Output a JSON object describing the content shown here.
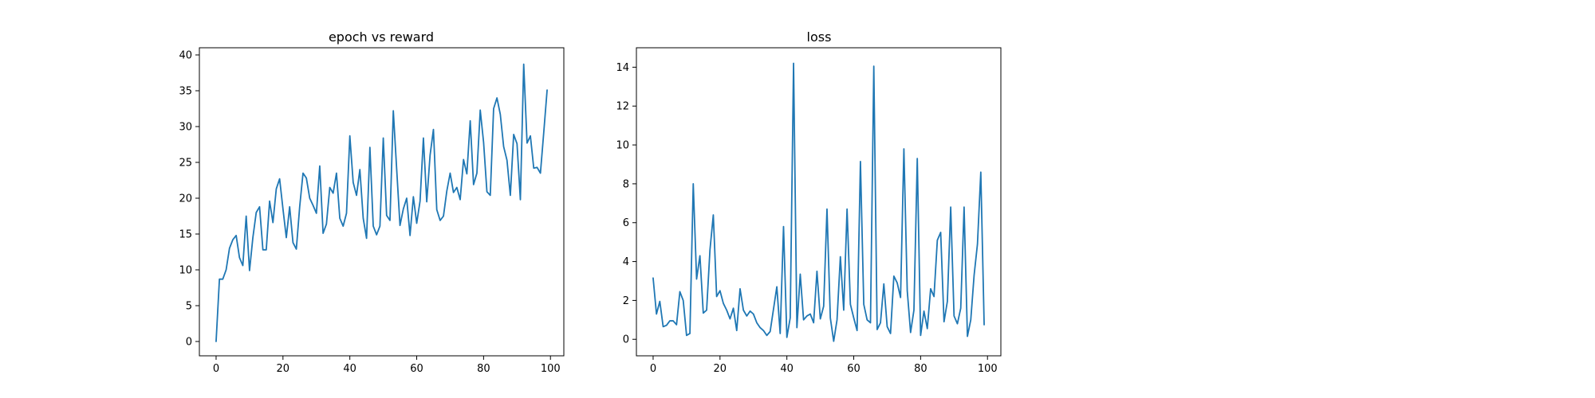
{
  "figure": {
    "background": "#ffffff",
    "line_color": "#1f77b4"
  },
  "chart_data": [
    {
      "type": "line",
      "title": "epoch vs reward",
      "xlabel": "",
      "ylabel": "",
      "xlim": [
        -5,
        104
      ],
      "ylim": [
        -2,
        41
      ],
      "xticks": [
        0,
        20,
        40,
        60,
        80,
        100
      ],
      "yticks": [
        0,
        5,
        10,
        15,
        20,
        25,
        30,
        35,
        40
      ],
      "grid": false,
      "x": [
        0,
        1,
        2,
        3,
        4,
        5,
        6,
        7,
        8,
        9,
        10,
        11,
        12,
        13,
        14,
        15,
        16,
        17,
        18,
        19,
        20,
        21,
        22,
        23,
        24,
        25,
        26,
        27,
        28,
        29,
        30,
        31,
        32,
        33,
        34,
        35,
        36,
        37,
        38,
        39,
        40,
        41,
        42,
        43,
        44,
        45,
        46,
        47,
        48,
        49,
        50,
        51,
        52,
        53,
        54,
        55,
        56,
        57,
        58,
        59,
        60,
        61,
        62,
        63,
        64,
        65,
        66,
        67,
        68,
        69,
        70,
        71,
        72,
        73,
        74,
        75,
        76,
        77,
        78,
        79,
        80,
        81,
        82,
        83,
        84,
        85,
        86,
        87,
        88,
        89,
        90,
        91,
        92,
        93,
        94,
        95,
        96,
        97,
        98,
        99
      ],
      "series": [
        {
          "values": [
            0.0,
            8.7,
            8.7,
            10.0,
            13.0,
            14.2,
            14.8,
            11.7,
            10.6,
            17.5,
            9.9,
            14.5,
            18.0,
            18.8,
            12.8,
            12.8,
            19.6,
            16.6,
            21.3,
            22.7,
            18.5,
            14.5,
            18.8,
            13.8,
            12.9,
            18.8,
            23.5,
            22.8,
            20.0,
            19.0,
            17.9,
            24.5,
            15.1,
            16.4,
            21.5,
            20.7,
            23.5,
            17.2,
            16.1,
            17.9,
            28.7,
            22.2,
            20.4,
            24.0,
            17.2,
            14.4,
            27.1,
            16.1,
            14.9,
            16.1,
            28.4,
            17.6,
            16.9,
            32.2,
            24.1,
            16.2,
            18.5,
            20.0,
            14.8,
            20.2,
            16.5,
            19.6,
            28.4,
            19.5,
            26.0,
            29.6,
            18.4,
            16.9,
            17.5,
            21.0,
            23.5,
            20.8,
            21.5,
            19.8,
            25.4,
            23.4,
            30.8,
            21.9,
            23.5,
            32.3,
            27.8,
            20.9,
            20.4,
            32.5,
            34.0,
            31.7,
            27.2,
            25.3,
            20.4,
            28.9,
            27.6,
            19.8,
            38.7,
            27.7,
            28.7,
            24.2,
            24.3,
            23.5,
            29.2,
            35.1
          ]
        }
      ]
    },
    {
      "type": "line",
      "title": "loss",
      "xlabel": "",
      "ylabel": "",
      "xlim": [
        -5,
        104
      ],
      "ylim": [
        -0.85,
        15.0
      ],
      "xticks": [
        0,
        20,
        40,
        60,
        80,
        100
      ],
      "yticks": [
        0,
        2,
        4,
        6,
        8,
        10,
        12,
        14
      ],
      "grid": false,
      "x": [
        0,
        1,
        2,
        3,
        4,
        5,
        6,
        7,
        8,
        9,
        10,
        11,
        12,
        13,
        14,
        15,
        16,
        17,
        18,
        19,
        20,
        21,
        22,
        23,
        24,
        25,
        26,
        27,
        28,
        29,
        30,
        31,
        32,
        33,
        34,
        35,
        36,
        37,
        38,
        39,
        40,
        41,
        42,
        43,
        44,
        45,
        46,
        47,
        48,
        49,
        50,
        51,
        52,
        53,
        54,
        55,
        56,
        57,
        58,
        59,
        60,
        61,
        62,
        63,
        64,
        65,
        66,
        67,
        68,
        69,
        70,
        71,
        72,
        73,
        74,
        75,
        76,
        77,
        78,
        79,
        80,
        81,
        82,
        83,
        84,
        85,
        86,
        87,
        88,
        89,
        90,
        91,
        92,
        93,
        94,
        95,
        96,
        97,
        98,
        99
      ],
      "series": [
        {
          "values": [
            3.15,
            1.3,
            1.95,
            0.65,
            0.72,
            0.95,
            0.95,
            0.75,
            2.45,
            2.0,
            0.2,
            0.3,
            8.0,
            3.1,
            4.3,
            1.35,
            1.5,
            4.6,
            6.4,
            2.2,
            2.5,
            1.85,
            1.5,
            1.05,
            1.6,
            0.45,
            2.6,
            1.5,
            1.2,
            1.45,
            1.3,
            0.85,
            0.6,
            0.45,
            0.2,
            0.4,
            1.55,
            2.7,
            0.3,
            5.8,
            0.1,
            1.1,
            14.2,
            0.6,
            3.35,
            1.0,
            1.2,
            1.3,
            0.85,
            3.5,
            1.05,
            1.7,
            6.7,
            1.1,
            -0.1,
            1.0,
            4.25,
            1.5,
            6.7,
            1.8,
            1.1,
            0.45,
            9.15,
            1.8,
            1.0,
            0.85,
            14.05,
            0.5,
            0.85,
            2.85,
            0.65,
            0.3,
            3.25,
            2.9,
            2.15,
            9.8,
            2.5,
            0.35,
            1.5,
            9.3,
            0.2,
            1.45,
            0.55,
            2.6,
            2.2,
            5.1,
            5.5,
            0.9,
            1.95,
            6.8,
            1.2,
            0.8,
            1.6,
            6.8,
            0.15,
            1.0,
            3.3,
            4.9,
            8.6,
            0.75
          ]
        }
      ]
    }
  ]
}
